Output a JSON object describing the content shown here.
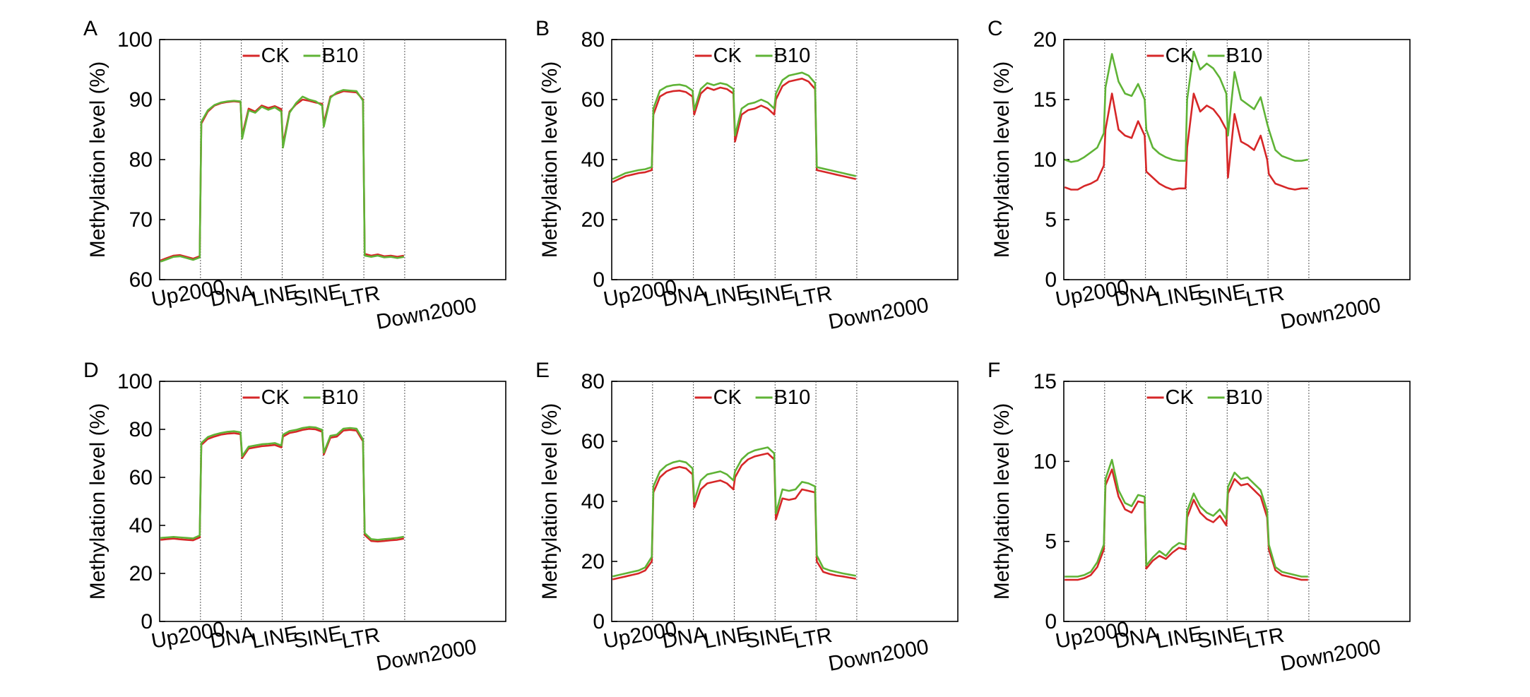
{
  "colors": {
    "CK": "#d62728",
    "B10": "#5fb336"
  },
  "chart_data": [
    {
      "panel": "A",
      "type": "line",
      "ylabel": "Methylation level (%)",
      "ylim": [
        60,
        100
      ],
      "yticks": [
        60,
        70,
        80,
        90,
        100
      ],
      "categories": [
        "Up2000",
        "DNA",
        "LINE",
        "SINE",
        "LTR",
        "Down2000"
      ],
      "legend": [
        "CK",
        "B10"
      ],
      "series": [
        {
          "name": "CK",
          "regions": [
            [
              63.2,
              63.6,
              64.0,
              64.1,
              63.8,
              63.5,
              63.9
            ],
            [
              86.0,
              88.0,
              89.0,
              89.4,
              89.6,
              89.7,
              89.6
            ],
            [
              84.0,
              88.5,
              88.0,
              89.0,
              88.6,
              88.9,
              88.4
            ],
            [
              82.5,
              88.0,
              89.2,
              90.0,
              89.8,
              89.5,
              89.3
            ],
            [
              86.0,
              90.5,
              91.0,
              91.4,
              91.3,
              91.2,
              90.0
            ],
            [
              64.3,
              64.0,
              64.2,
              63.9,
              64.0,
              63.8,
              64.0
            ]
          ]
        },
        {
          "name": "B10",
          "regions": [
            [
              63.0,
              63.4,
              63.8,
              63.9,
              63.6,
              63.3,
              63.7
            ],
            [
              86.3,
              88.2,
              89.1,
              89.5,
              89.7,
              89.8,
              89.7
            ],
            [
              83.5,
              88.2,
              87.8,
              88.8,
              88.3,
              88.7,
              88.0
            ],
            [
              82.0,
              87.8,
              89.4,
              90.5,
              90.0,
              89.7,
              89.0
            ],
            [
              85.5,
              90.3,
              91.2,
              91.6,
              91.5,
              91.4,
              89.8
            ],
            [
              64.0,
              63.8,
              64.0,
              63.7,
              63.8,
              63.6,
              63.8
            ]
          ]
        }
      ]
    },
    {
      "panel": "B",
      "type": "line",
      "ylabel": "Methylation level (%)",
      "ylim": [
        0,
        80
      ],
      "yticks": [
        0,
        20,
        40,
        60,
        80
      ],
      "categories": [
        "Up2000",
        "DNA",
        "LINE",
        "SINE",
        "LTR",
        "Down2000"
      ],
      "legend": [
        "CK",
        "B10"
      ],
      "series": [
        {
          "name": "CK",
          "regions": [
            [
              32.5,
              33.5,
              34.5,
              35.0,
              35.5,
              35.8,
              36.5
            ],
            [
              55.0,
              61.0,
              62.3,
              62.8,
              63.0,
              62.5,
              61.0
            ],
            [
              55.0,
              62.0,
              64.0,
              63.2,
              64.0,
              63.5,
              62.0
            ],
            [
              46.0,
              55.0,
              56.5,
              57.0,
              58.0,
              57.0,
              55.0
            ],
            [
              60.0,
              64.5,
              66.0,
              66.5,
              67.0,
              66.0,
              63.5
            ],
            [
              36.5,
              36.0,
              35.5,
              35.0,
              34.5,
              34.0,
              33.5
            ]
          ]
        },
        {
          "name": "B10",
          "regions": [
            [
              33.5,
              34.5,
              35.5,
              36.0,
              36.5,
              36.8,
              37.5
            ],
            [
              57.0,
              63.0,
              64.3,
              64.8,
              65.0,
              64.5,
              63.0
            ],
            [
              56.5,
              63.5,
              65.5,
              64.8,
              65.5,
              65.0,
              63.5
            ],
            [
              48.0,
              57.0,
              58.5,
              59.0,
              60.0,
              59.0,
              57.0
            ],
            [
              62.0,
              66.5,
              68.0,
              68.5,
              69.0,
              68.0,
              65.5
            ],
            [
              37.5,
              37.0,
              36.5,
              36.0,
              35.5,
              35.0,
              34.5
            ]
          ]
        }
      ]
    },
    {
      "panel": "C",
      "type": "line",
      "ylabel": "Methylation level (%)",
      "ylim": [
        0,
        20
      ],
      "yticks": [
        0,
        5,
        10,
        15,
        20
      ],
      "categories": [
        "Up2000",
        "DNA",
        "LINE",
        "SINE",
        "LTR",
        "Down2000"
      ],
      "legend": [
        "CK",
        "B10"
      ],
      "series": [
        {
          "name": "CK",
          "regions": [
            [
              7.7,
              7.5,
              7.5,
              7.8,
              8.0,
              8.3,
              9.5
            ],
            [
              12.5,
              15.5,
              12.5,
              12.0,
              11.8,
              13.2,
              12.0
            ],
            [
              9.0,
              8.5,
              8.0,
              7.7,
              7.5,
              7.6,
              7.6
            ],
            [
              11.0,
              15.5,
              14.0,
              14.5,
              14.2,
              13.5,
              12.5
            ],
            [
              8.5,
              13.8,
              11.5,
              11.2,
              10.8,
              12.0,
              10.0
            ],
            [
              8.8,
              8.0,
              7.8,
              7.6,
              7.5,
              7.6,
              7.6
            ]
          ]
        },
        {
          "name": "B10",
          "regions": [
            [
              10.0,
              9.8,
              9.9,
              10.2,
              10.6,
              11.0,
              12.2
            ],
            [
              16.0,
              18.8,
              16.5,
              15.5,
              15.3,
              16.3,
              15.0
            ],
            [
              12.5,
              11.0,
              10.5,
              10.2,
              10.0,
              9.9,
              9.9
            ],
            [
              15.0,
              19.0,
              17.5,
              18.0,
              17.6,
              16.8,
              15.5
            ],
            [
              12.0,
              17.3,
              15.0,
              14.6,
              14.2,
              15.2,
              13.0
            ],
            [
              12.5,
              10.8,
              10.3,
              10.1,
              9.9,
              9.9,
              10.0
            ]
          ]
        }
      ]
    },
    {
      "panel": "D",
      "type": "line",
      "ylabel": "Methylation level (%)",
      "ylim": [
        0,
        100
      ],
      "yticks": [
        0,
        20,
        40,
        60,
        80,
        100
      ],
      "categories": [
        "Up2000",
        "DNA",
        "LINE",
        "SINE",
        "LTR",
        "Down2000"
      ],
      "legend": [
        "CK",
        "B10"
      ],
      "series": [
        {
          "name": "CK",
          "regions": [
            [
              34.0,
              34.3,
              34.5,
              34.2,
              34.0,
              33.8,
              35.0
            ],
            [
              73.5,
              76.0,
              77.0,
              77.8,
              78.2,
              78.4,
              78.0
            ],
            [
              68.0,
              72.0,
              72.5,
              73.0,
              73.2,
              73.5,
              72.5
            ],
            [
              77.0,
              78.5,
              79.0,
              79.8,
              80.2,
              80.0,
              79.0
            ],
            [
              69.5,
              76.5,
              77.0,
              79.5,
              79.8,
              79.5,
              75.0
            ],
            [
              36.0,
              33.5,
              33.3,
              33.5,
              33.8,
              34.0,
              34.5
            ]
          ]
        },
        {
          "name": "B10",
          "regions": [
            [
              34.8,
              35.0,
              35.2,
              35.0,
              34.8,
              34.6,
              35.8
            ],
            [
              74.3,
              76.8,
              77.8,
              78.5,
              79.0,
              79.2,
              78.8
            ],
            [
              68.8,
              72.8,
              73.3,
              73.8,
              74.0,
              74.3,
              73.3
            ],
            [
              77.8,
              79.3,
              79.8,
              80.6,
              81.0,
              80.8,
              79.8
            ],
            [
              70.3,
              77.3,
              77.8,
              80.3,
              80.6,
              80.3,
              75.8
            ],
            [
              36.8,
              34.3,
              34.0,
              34.3,
              34.5,
              34.8,
              35.3
            ]
          ]
        }
      ]
    },
    {
      "panel": "E",
      "type": "line",
      "ylabel": "Methylation level (%)",
      "ylim": [
        0,
        80
      ],
      "yticks": [
        0,
        20,
        40,
        60,
        80
      ],
      "categories": [
        "Up2000",
        "DNA",
        "LINE",
        "SINE",
        "LTR",
        "Down2000"
      ],
      "legend": [
        "CK",
        "B10"
      ],
      "series": [
        {
          "name": "CK",
          "regions": [
            [
              14.0,
              14.5,
              15.0,
              15.5,
              16.0,
              17.0,
              20.0
            ],
            [
              43.0,
              48.0,
              50.0,
              51.0,
              51.5,
              51.0,
              49.0
            ],
            [
              38.0,
              44.0,
              46.0,
              46.5,
              47.0,
              46.0,
              44.0
            ],
            [
              48.0,
              52.0,
              54.0,
              55.0,
              55.5,
              56.0,
              54.0
            ],
            [
              34.0,
              41.0,
              40.5,
              41.0,
              44.0,
              43.5,
              43.0
            ],
            [
              20.0,
              16.5,
              15.8,
              15.3,
              15.0,
              14.6,
              14.2
            ]
          ]
        },
        {
          "name": "B10",
          "regions": [
            [
              15.0,
              15.5,
              16.0,
              16.5,
              17.0,
              18.0,
              21.5
            ],
            [
              45.0,
              50.0,
              52.0,
              53.0,
              53.5,
              53.0,
              51.0
            ],
            [
              40.0,
              47.0,
              49.0,
              49.5,
              50.0,
              49.0,
              47.0
            ],
            [
              50.0,
              54.0,
              56.0,
              57.0,
              57.5,
              58.0,
              56.0
            ],
            [
              36.0,
              44.0,
              43.5,
              44.0,
              46.5,
              46.0,
              45.0
            ],
            [
              22.0,
              17.8,
              17.0,
              16.5,
              16.0,
              15.6,
              15.2
            ]
          ]
        }
      ]
    },
    {
      "panel": "F",
      "type": "line",
      "ylabel": "Methylation level (%)",
      "ylim": [
        0,
        15
      ],
      "yticks": [
        0,
        5,
        10,
        15
      ],
      "categories": [
        "Up2000",
        "DNA",
        "LINE",
        "SINE",
        "LTR",
        "Down2000"
      ],
      "legend": [
        "CK",
        "B10"
      ],
      "series": [
        {
          "name": "CK",
          "regions": [
            [
              2.6,
              2.6,
              2.6,
              2.7,
              2.9,
              3.4,
              4.5
            ],
            [
              8.5,
              9.5,
              7.8,
              7.0,
              6.8,
              7.5,
              7.4
            ],
            [
              3.3,
              3.8,
              4.1,
              3.9,
              4.3,
              4.6,
              4.5
            ],
            [
              6.5,
              7.6,
              6.8,
              6.4,
              6.2,
              6.6,
              6.0
            ],
            [
              8.0,
              8.9,
              8.5,
              8.6,
              8.2,
              7.8,
              6.5
            ],
            [
              4.5,
              3.2,
              2.9,
              2.8,
              2.7,
              2.6,
              2.6
            ]
          ]
        },
        {
          "name": "B10",
          "regions": [
            [
              2.8,
              2.8,
              2.8,
              2.9,
              3.1,
              3.7,
              4.8
            ],
            [
              8.9,
              10.1,
              8.2,
              7.4,
              7.2,
              7.9,
              7.8
            ],
            [
              3.5,
              4.0,
              4.4,
              4.1,
              4.6,
              4.9,
              4.8
            ],
            [
              6.9,
              8.0,
              7.2,
              6.8,
              6.6,
              7.0,
              6.4
            ],
            [
              8.4,
              9.3,
              8.9,
              9.0,
              8.6,
              8.2,
              6.9
            ],
            [
              4.8,
              3.4,
              3.1,
              3.0,
              2.9,
              2.8,
              2.8
            ]
          ]
        }
      ]
    }
  ]
}
